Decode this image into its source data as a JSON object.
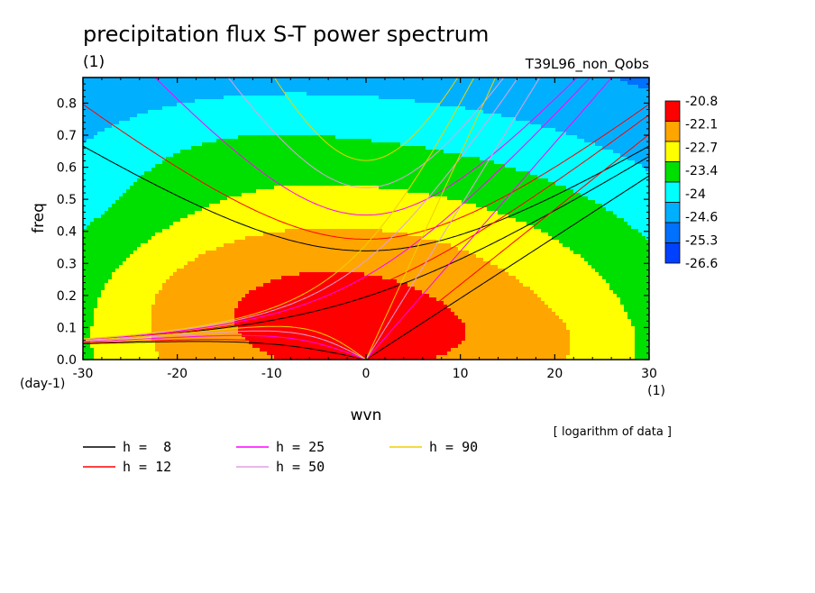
{
  "chart_data": {
    "type": "heatmap",
    "title": "precipitation flux S-T power spectrum",
    "title_unit": "(1)",
    "run_label": "T39L96_non_Qobs",
    "xlabel": "wvn",
    "ylabel": "freq",
    "x_unit": "(1)",
    "y_unit": "(day-1)",
    "note": "[ logarithm of data ]",
    "xlim": [
      -30,
      30
    ],
    "ylim": [
      0,
      0.88
    ],
    "x_ticks": [
      "-30",
      "-20",
      "-10",
      "0",
      "10",
      "20",
      "30"
    ],
    "y_ticks": [
      "0.0",
      "0.1",
      "0.2",
      "0.3",
      "0.4",
      "0.5",
      "0.6",
      "0.7",
      "0.8"
    ],
    "colorbar": {
      "labels": [
        "-20.8",
        "-22.1",
        "-22.7",
        "-23.4",
        "-24",
        "-24.6",
        "-25.3",
        "-26.6"
      ],
      "colors": [
        "#ff0000",
        "#ffa500",
        "#ffff00",
        "#00e000",
        "#00ffff",
        "#00b0ff",
        "#0070ff",
        "#0040ff"
      ]
    },
    "level_colors": [
      "#0040ff",
      "#0070ff",
      "#00b0ff",
      "#00ffff",
      "#00e000",
      "#ffff00",
      "#ffa500",
      "#ff0000"
    ],
    "dispersion_curves": [
      {
        "label": "h =  8",
        "h": 8,
        "color": "#000000"
      },
      {
        "label": "h = 12",
        "h": 12,
        "color": "#ff0000"
      },
      {
        "label": "h = 25",
        "h": 25,
        "color": "#ff00ff"
      },
      {
        "label": "h = 50",
        "h": 50,
        "color": "#e0a0e0"
      },
      {
        "label": "h = 90",
        "h": 90,
        "color": "#f0d000"
      }
    ]
  }
}
